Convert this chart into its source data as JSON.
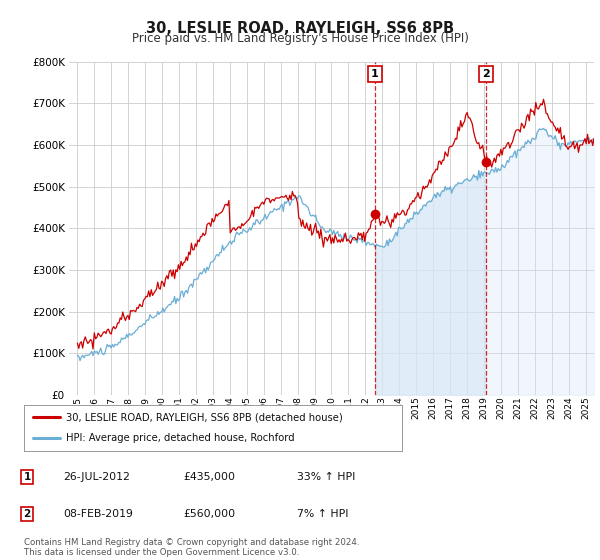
{
  "title": "30, LESLIE ROAD, RAYLEIGH, SS6 8PB",
  "subtitle": "Price paid vs. HM Land Registry's House Price Index (HPI)",
  "ylim": [
    0,
    800000
  ],
  "yticks": [
    0,
    100000,
    200000,
    300000,
    400000,
    500000,
    600000,
    700000,
    800000
  ],
  "background_color": "#ffffff",
  "plot_bg_color": "#ffffff",
  "grid_color": "#cccccc",
  "hpi_fill_color": "#d6e8f7",
  "hpi_line_color": "#6aaed6",
  "price_line_color": "#cc0000",
  "vline_color": "#cc0000",
  "sale1_x": 2012.57,
  "sale1_y": 435000,
  "sale2_x": 2019.1,
  "sale2_y": 560000,
  "legend_entries": [
    "30, LESLIE ROAD, RAYLEIGH, SS6 8PB (detached house)",
    "HPI: Average price, detached house, Rochford"
  ],
  "table_rows": [
    [
      "1",
      "26-JUL-2012",
      "£435,000",
      "33% ↑ HPI"
    ],
    [
      "2",
      "08-FEB-2019",
      "£560,000",
      "7% ↑ HPI"
    ]
  ],
  "footer": "Contains HM Land Registry data © Crown copyright and database right 2024.\nThis data is licensed under the Open Government Licence v3.0.",
  "xlim_start": 1994.5,
  "xlim_end": 2025.5
}
